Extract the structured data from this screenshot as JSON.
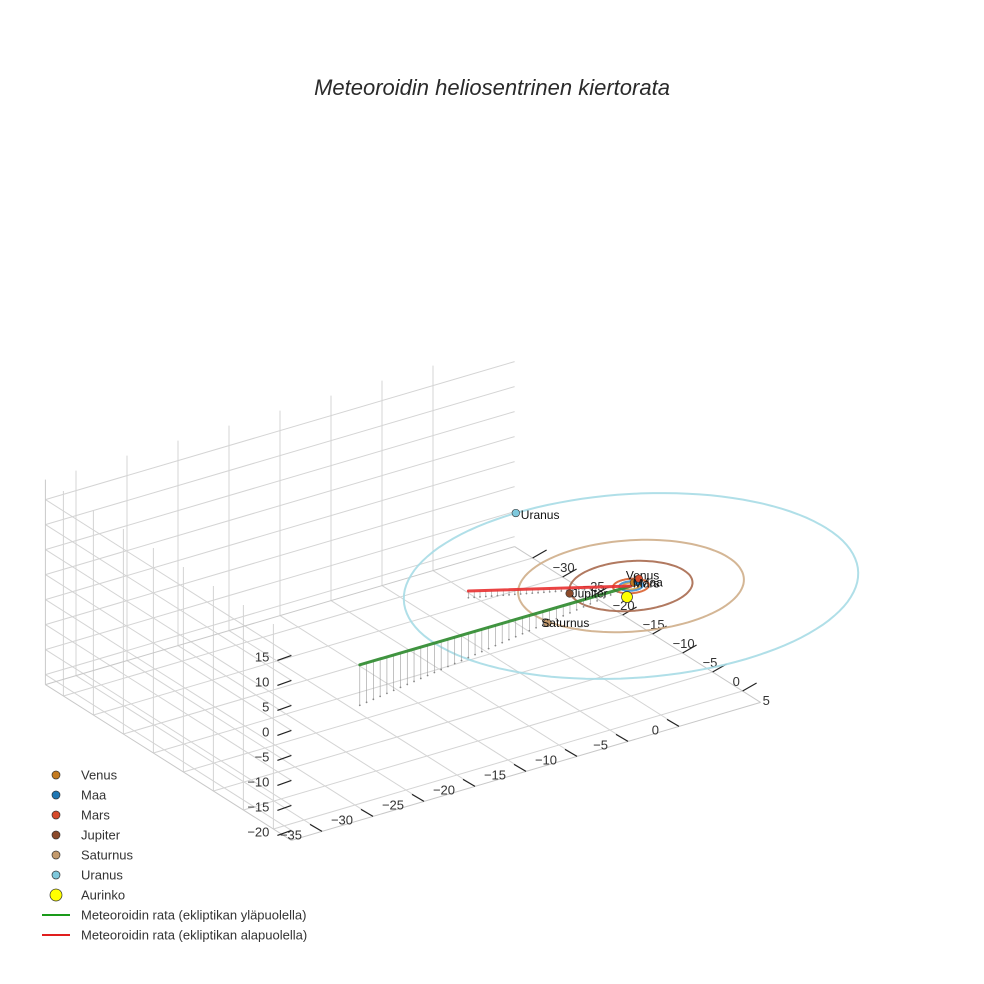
{
  "chart_data": {
    "type": "scatter3d",
    "title": "Meteoroidin heliosentrinen kiertorata",
    "axes": {
      "x": {
        "ticks": [
          -35,
          -30,
          -25,
          -20,
          -15,
          -10,
          -5,
          0
        ]
      },
      "y": {
        "ticks": [
          -30,
          -25,
          -20,
          -15,
          -10,
          -5,
          0,
          5
        ]
      },
      "z": {
        "ticks": [
          -20,
          -15,
          -10,
          -5,
          0,
          5,
          10,
          15
        ]
      }
    },
    "grid": true,
    "legend_position": "bottom-left",
    "planets": [
      {
        "name": "Venus",
        "color": "#c47a1f",
        "orbit_color": "#d9a441",
        "radius_au": 0.72,
        "pos": [
          0.55,
          -0.45,
          0
        ]
      },
      {
        "name": "Maa",
        "color": "#1f77b4",
        "orbit_color": "#3f8fd0",
        "radius_au": 1.0,
        "pos": [
          0.9,
          -0.45,
          0
        ]
      },
      {
        "name": "Mars",
        "color": "#d64a2a",
        "orbit_color": "#d9602f",
        "radius_au": 1.52,
        "pos": [
          1.3,
          -0.9,
          0
        ]
      },
      {
        "name": "Jupiter",
        "color": "#8b4a2b",
        "orbit_color": "#a86a4f",
        "radius_au": 5.2,
        "pos": [
          -4.9,
          -1.9,
          0
        ]
      },
      {
        "name": "Saturnus",
        "color": "#c49a6c",
        "orbit_color": "#cfae8a",
        "radius_au": 9.54,
        "pos": [
          -9.5,
          2.2,
          0
        ]
      },
      {
        "name": "Uranus",
        "color": "#7ec8dc",
        "orbit_color": "#a7dbe6",
        "radius_au": 19.2,
        "pos": [
          0.0,
          -19.2,
          0
        ]
      }
    ],
    "sun": {
      "name": "Aurinko",
      "color": "#ffff00",
      "pos": [
        0,
        0,
        0
      ]
    },
    "trajectory_above": {
      "name": "Meteoroidin rata (ekliptikan yläpuolella)",
      "color": "#2e8b2e",
      "start": [
        -36,
        16,
        18
      ],
      "end": [
        0,
        0,
        0
      ]
    },
    "trajectory_below": {
      "name": "Meteoroidin rata (ekliptikan alapuolella)",
      "color": "#e83030",
      "start": [
        -13,
        -5,
        3
      ],
      "end": [
        0,
        0,
        0
      ]
    }
  }
}
